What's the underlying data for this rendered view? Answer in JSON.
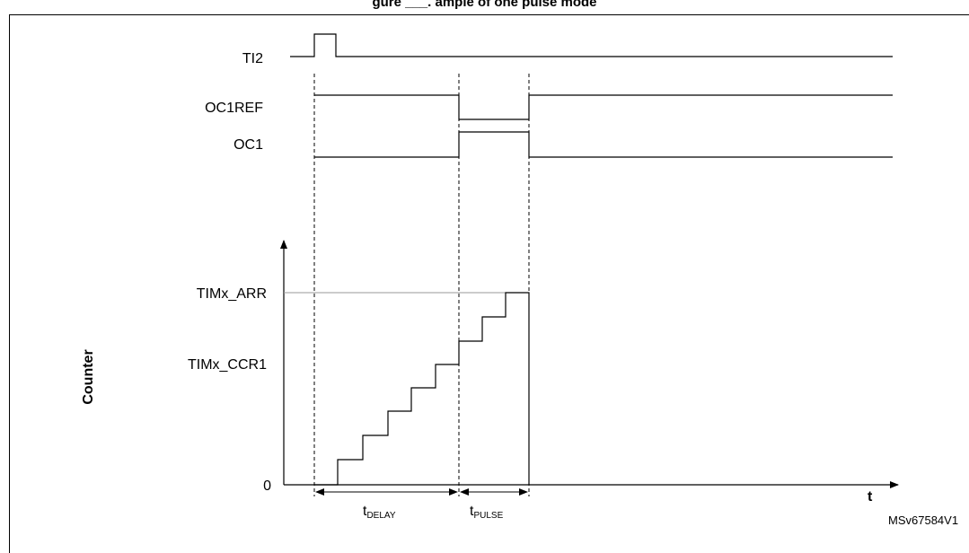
{
  "figure": {
    "title": "gure ___. ample of one pulse mode",
    "id": "MSv67584V1"
  },
  "signals": {
    "ti2": "TI2",
    "oc1ref": "OC1REF",
    "oc1": "OC1"
  },
  "axis": {
    "ylabel": "Counter",
    "xlabel": "t",
    "arr": "TIMx_ARR",
    "ccr1": "TIMx_CCR1",
    "zero": "0"
  },
  "durations": {
    "delay_main": "t",
    "delay_sub": "DELAY",
    "pulse_main": "t",
    "pulse_sub": "PULSE"
  },
  "colors": {
    "line": "#000000",
    "arr_guide": "#999999"
  }
}
